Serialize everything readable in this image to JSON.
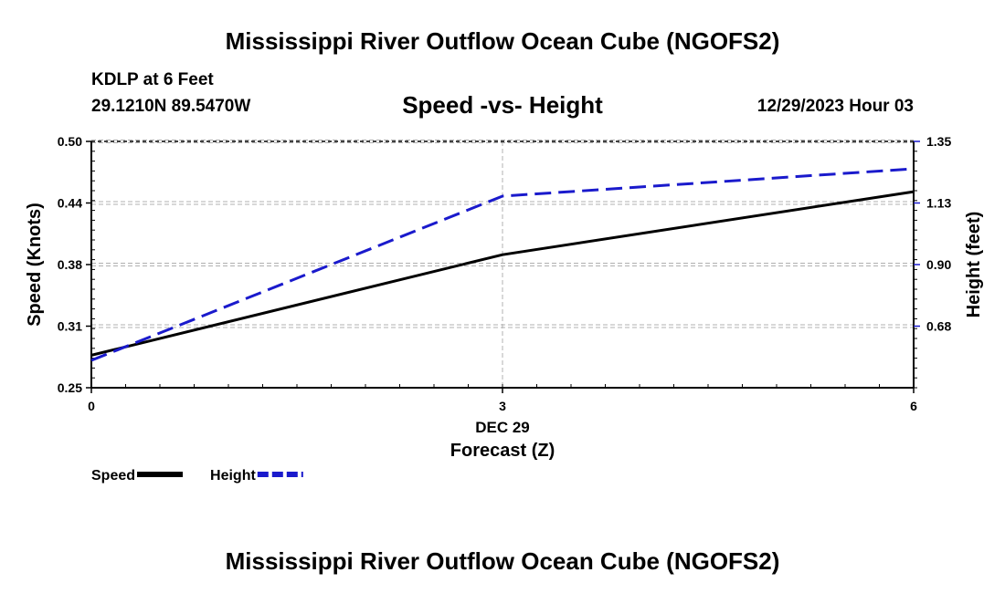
{
  "chart_data": {
    "type": "line",
    "title": "Mississippi River Outflow Ocean Cube (NGOFS2)",
    "footer_title": "Mississippi River Outflow Ocean Cube (NGOFS2)",
    "subtitle": "Speed -vs- Height",
    "station": "KDLP at 6 Feet",
    "location": "29.1210N  89.5470W",
    "datetime": "12/29/2023 Hour 03",
    "xlabel": "Forecast (Z)",
    "date_label": "DEC 29",
    "x_ticks": [
      0,
      3,
      6
    ],
    "x_tick_labels": [
      "0",
      "3",
      "6"
    ],
    "xlim": [
      0,
      6
    ],
    "ylabel_left": "Speed (Knots)",
    "ylabel_right": "Height (feet)",
    "ylim_left": [
      0.25,
      0.5
    ],
    "ylim_right": [
      0.45,
      1.35
    ],
    "y_left_ticks": [
      0.25,
      0.3125,
      0.375,
      0.4375,
      0.5
    ],
    "y_left_tick_labels": [
      "0.25",
      "0.31",
      "0.38",
      "0.44",
      "0.50"
    ],
    "y_right_ticks": [
      0.675,
      0.9,
      1.125,
      1.35
    ],
    "y_right_tick_labels": [
      "0.68",
      "0.90",
      "1.13",
      "1.35"
    ],
    "series": [
      {
        "name": "Speed",
        "axis": "left",
        "color": "#000000",
        "style": "solid",
        "x": [
          0,
          3,
          6
        ],
        "values": [
          0.283,
          0.385,
          0.449
        ]
      },
      {
        "name": "Height",
        "axis": "right",
        "color": "#1a1acc",
        "style": "dashed",
        "x": [
          0,
          3,
          6
        ],
        "values": [
          0.55,
          1.15,
          1.25
        ]
      }
    ],
    "legend": [
      "Speed",
      "Height"
    ],
    "legend_position": "bottom-left"
  }
}
